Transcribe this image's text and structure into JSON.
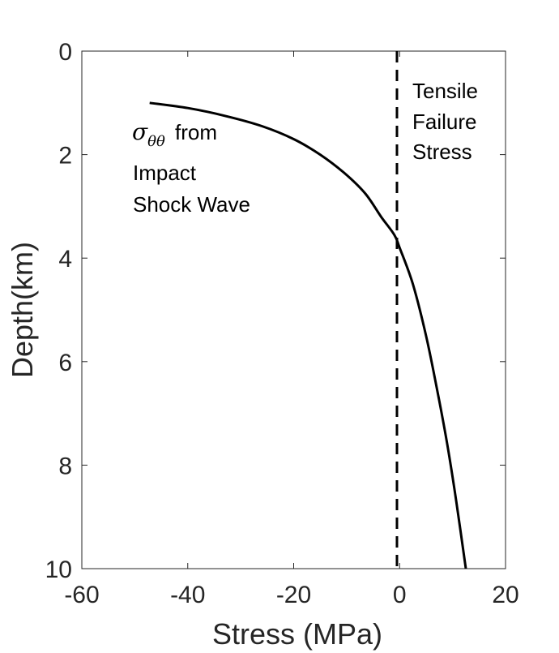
{
  "chart_data": {
    "type": "line",
    "title": "",
    "xlabel": "Stress (MPa)",
    "ylabel": "Depth(km)",
    "xlim": [
      -60,
      20
    ],
    "ylim": [
      0,
      10
    ],
    "y_reversed": true,
    "grid": false,
    "x_ticks": [
      -60,
      -40,
      -20,
      0,
      20
    ],
    "y_ticks": [
      0,
      2,
      4,
      6,
      8,
      10
    ],
    "series": [
      {
        "name": "sigma_theta_theta from Impact Shock Wave",
        "style": "solid",
        "color": "#000000",
        "x": [
          -47.2,
          -40.0,
          -33.0,
          -26.0,
          -20.0,
          -15.0,
          -10.5,
          -6.5,
          -3.5,
          -1.0,
          0.0,
          2.5,
          5.0,
          7.0,
          9.0,
          10.7,
          12.5
        ],
        "y": [
          1.0,
          1.1,
          1.25,
          1.45,
          1.7,
          2.0,
          2.35,
          2.75,
          3.2,
          3.55,
          3.8,
          4.5,
          5.5,
          6.5,
          7.6,
          8.7,
          10.0
        ]
      },
      {
        "name": "Tensile Failure Stress",
        "style": "dashed",
        "color": "#000000",
        "x": [
          -0.5,
          -0.5
        ],
        "y": [
          0,
          10
        ]
      }
    ],
    "annotations": {
      "sigma_symbol": "σ",
      "sigma_subscript": "θθ",
      "curve_label_line1": "from",
      "curve_label_line2": "Impact",
      "curve_label_line3": "Shock Wave",
      "tensile_line1": "Tensile",
      "tensile_line2": "Failure",
      "tensile_line3": "Stress"
    },
    "colors": {
      "axis": "#262626",
      "curve": "#000000"
    }
  }
}
